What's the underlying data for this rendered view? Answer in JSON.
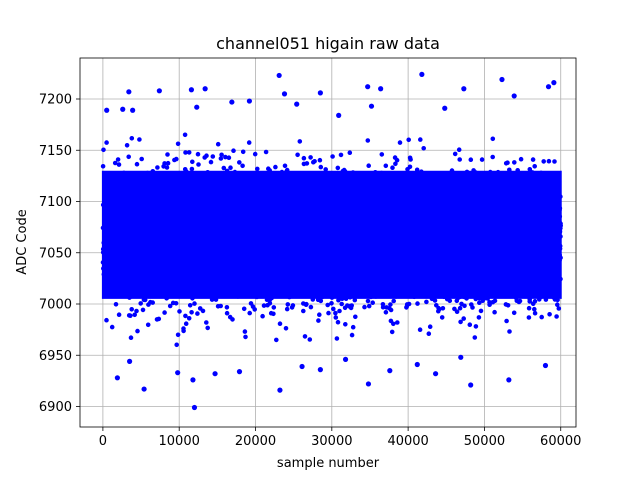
{
  "chart_data": {
    "type": "scatter",
    "title": "channel051 higain raw data",
    "xlabel": "sample number",
    "ylabel": "ADC Code",
    "xlim": [
      -3000,
      62000
    ],
    "ylim": [
      6880,
      7240
    ],
    "xticks": [
      0,
      10000,
      20000,
      30000,
      40000,
      50000,
      60000
    ],
    "yticks": [
      6900,
      6950,
      7000,
      7050,
      7100,
      7150,
      7200
    ],
    "xtick_labels": [
      "0",
      "10000",
      "20000",
      "30000",
      "40000",
      "50000",
      "60000"
    ],
    "ytick_labels": [
      "6900",
      "6950",
      "7000",
      "7050",
      "7100",
      "7150",
      "7200"
    ],
    "grid": true,
    "color": "#0000ff",
    "series": [
      {
        "n_samples": 60000,
        "x_range": [
          0,
          59999
        ],
        "mean": 7065,
        "dense_band": [
          6985,
          7150
        ],
        "outliers": [
          [
            12000,
            6899
          ],
          [
            23200,
            6916
          ],
          [
            5400,
            6917
          ],
          [
            34800,
            6922
          ],
          [
            48200,
            6921
          ],
          [
            53200,
            6926
          ],
          [
            11800,
            6926
          ],
          [
            1900,
            6928
          ],
          [
            37600,
            6935
          ],
          [
            17900,
            6934
          ],
          [
            43600,
            6932
          ],
          [
            14700,
            6932
          ],
          [
            9800,
            6933
          ],
          [
            28500,
            6936
          ],
          [
            41200,
            6941
          ],
          [
            58000,
            6940
          ],
          [
            26100,
            6939
          ],
          [
            3500,
            6944
          ],
          [
            31800,
            6946
          ],
          [
            46900,
            6948
          ],
          [
            23100,
            7223
          ],
          [
            41800,
            7224
          ],
          [
            52300,
            7219
          ],
          [
            59100,
            7216
          ],
          [
            58400,
            7212
          ],
          [
            34700,
            7212
          ],
          [
            11600,
            7209
          ],
          [
            13400,
            7210
          ],
          [
            36400,
            7210
          ],
          [
            47300,
            7210
          ],
          [
            3400,
            7207
          ],
          [
            7400,
            7208
          ],
          [
            28500,
            7206
          ],
          [
            23800,
            7205
          ],
          [
            53900,
            7203
          ],
          [
            19200,
            7198
          ],
          [
            16900,
            7197
          ],
          [
            25400,
            7195
          ],
          [
            35200,
            7193
          ],
          [
            2600,
            7190
          ],
          [
            3900,
            7189
          ],
          [
            500,
            7189
          ],
          [
            12300,
            7192
          ],
          [
            44800,
            7191
          ],
          [
            30900,
            7184
          ]
        ]
      }
    ]
  }
}
